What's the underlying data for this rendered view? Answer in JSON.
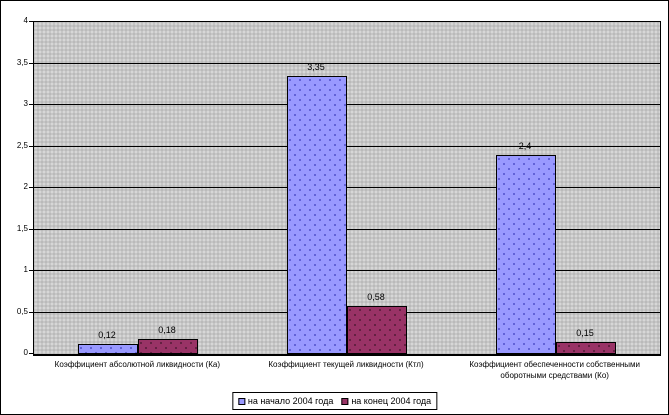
{
  "chart_data": {
    "type": "bar",
    "title": "",
    "xlabel": "",
    "ylabel": "",
    "categories": [
      "Коэффициент абсолютной ликвидности (Ка)",
      "Коэффициент текущей ликвидности (Ктл)",
      "Коэффициент обеспеченности собственными оборотными средствами (Ко)"
    ],
    "series": [
      {
        "name": "на начало 2004 года",
        "values": [
          0.12,
          3.35,
          2.4
        ],
        "value_labels": [
          "0,12",
          "3,35",
          "2,4"
        ],
        "color": "#9999FF",
        "dot_color": "#5353CC"
      },
      {
        "name": "на конец 2004 года",
        "values": [
          0.18,
          0.58,
          0.15
        ],
        "value_labels": [
          "0,18",
          "0,58",
          "0,15"
        ],
        "color": "#993366",
        "dot_color": "#551C38"
      }
    ],
    "ylim": [
      0,
      4
    ],
    "yticks": [
      {
        "value": 0,
        "label": "0"
      },
      {
        "value": 0.5,
        "label": "0,5"
      },
      {
        "value": 1,
        "label": "1"
      },
      {
        "value": 1.5,
        "label": "1,5"
      },
      {
        "value": 2,
        "label": "2"
      },
      {
        "value": 2.5,
        "label": "2,5"
      },
      {
        "value": 3,
        "label": "3"
      },
      {
        "value": 3.5,
        "label": "3,5"
      },
      {
        "value": 4,
        "label": "4"
      }
    ],
    "grid": "horizontal",
    "legend_position": "bottom",
    "plot_background": "#C6C6C6",
    "axis_color": "#000000"
  }
}
